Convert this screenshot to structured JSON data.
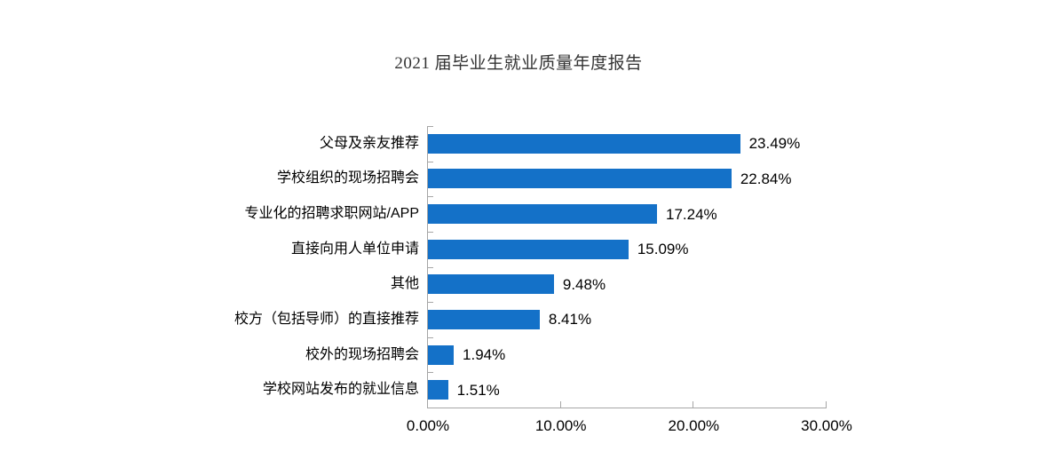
{
  "page": {
    "background": "#ffffff"
  },
  "chart_data": {
    "type": "bar",
    "orientation": "horizontal",
    "title": "2021 届毕业生就业质量年度报告",
    "categories": [
      "父母及亲友推荐",
      "学校组织的现场招聘会",
      "专业化的招聘求职网站/APP",
      "直接向用人单位申请",
      "其他",
      "校方（包括导师）的直接推荐",
      "校外的现场招聘会",
      "学校网站发布的就业信息"
    ],
    "values": [
      23.49,
      22.84,
      17.24,
      15.09,
      9.48,
      8.41,
      1.94,
      1.51
    ],
    "value_labels": [
      "23.49%",
      "22.84%",
      "17.24%",
      "15.09%",
      "9.48%",
      "8.41%",
      "1.94%",
      "1.51%"
    ],
    "xlabel": "",
    "ylabel": "",
    "xlim": [
      0,
      30
    ],
    "x_ticks": [
      0,
      10,
      20,
      30
    ],
    "x_tick_labels": [
      "0.00%",
      "10.00%",
      "20.00%",
      "30.00%"
    ],
    "bar_color": "#1471c8",
    "axis_color": "#a6a6a6",
    "grid": false,
    "legend_position": "none"
  }
}
